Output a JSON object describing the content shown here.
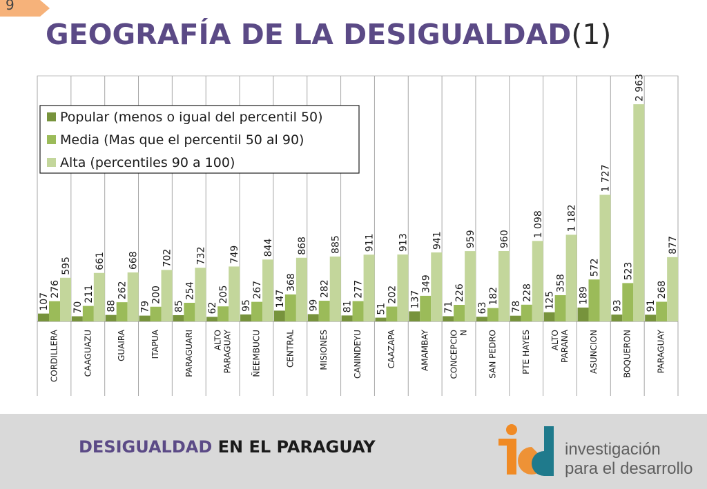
{
  "slide": {
    "number": "9",
    "title_bold": "GEOGRAFÍA DE LA DESIGUALDAD",
    "title_suffix": "(1)"
  },
  "footer": {
    "text_part1": "DESIGUALDAD",
    "text_part2": "EN EL PARAGUAY",
    "logo_line1": "investigación",
    "logo_line2_a": "para el ",
    "logo_line2_b": "desarrollo"
  },
  "colors": {
    "title": "#5b4a86",
    "popular": "#77933c",
    "media": "#9bbb59",
    "alta": "#c3d69b",
    "footer_bg": "#d9d9d9",
    "logo_orange": "#f08a24",
    "logo_teal": "#1f7a8c"
  },
  "chart_data": {
    "type": "bar",
    "categories": [
      "CORDILLERA",
      "CAAGUAZU",
      "GUAIRA",
      "ITAPUA",
      "PARAGUARI",
      "ALTO PARAGUAY",
      "ÑEEMBUCU",
      "CENTRAL",
      "MISIONES",
      "CANINDEYU",
      "CAAZAPA",
      "AMAMBAY",
      "CONCEPCIO N",
      "SAN PEDRO",
      "PTE HAYES",
      "ALTO PARANA",
      "ASUNCION",
      "BOQUERON",
      "PARAGUAY"
    ],
    "series": [
      {
        "name": "Popular (menos o igual del percentil 50)",
        "values": [
          107,
          70,
          88,
          79,
          85,
          62,
          95,
          147,
          99,
          81,
          51,
          137,
          71,
          63,
          78,
          125,
          189,
          93,
          91
        ]
      },
      {
        "name": "Media (Mas que el percentil 50 al 90)",
        "values": [
          276,
          211,
          262,
          200,
          254,
          205,
          267,
          368,
          282,
          277,
          202,
          349,
          226,
          182,
          228,
          358,
          572,
          523,
          268
        ]
      },
      {
        "name": "Alta (percentiles 90 a 100)",
        "values": [
          595,
          661,
          668,
          702,
          732,
          749,
          844,
          868,
          885,
          911,
          913,
          941,
          959,
          960,
          1098,
          1182,
          1727,
          2963,
          877
        ]
      }
    ],
    "value_labels": [
      [
        "107",
        "70",
        "88",
        "79",
        "85",
        "62",
        "95",
        "147",
        "99",
        "81",
        "51",
        "137",
        "71",
        "63",
        "78",
        "125",
        "189",
        "93",
        "91"
      ],
      [
        "276",
        "211",
        "262",
        "200",
        "254",
        "205",
        "267",
        "368",
        "282",
        "277",
        "202",
        "349",
        "226",
        "182",
        "228",
        "358",
        "572",
        "523",
        "268"
      ],
      [
        "595",
        "661",
        "668",
        "702",
        "732",
        "749",
        "844",
        "868",
        "885",
        "911",
        "913",
        "941",
        "959",
        "960",
        "1 098",
        "1 182",
        "1 727",
        "2 963",
        "877"
      ]
    ],
    "ylim": [
      0,
      3350
    ],
    "grid": "vertical separators between categories",
    "legend_position": "top-left"
  }
}
